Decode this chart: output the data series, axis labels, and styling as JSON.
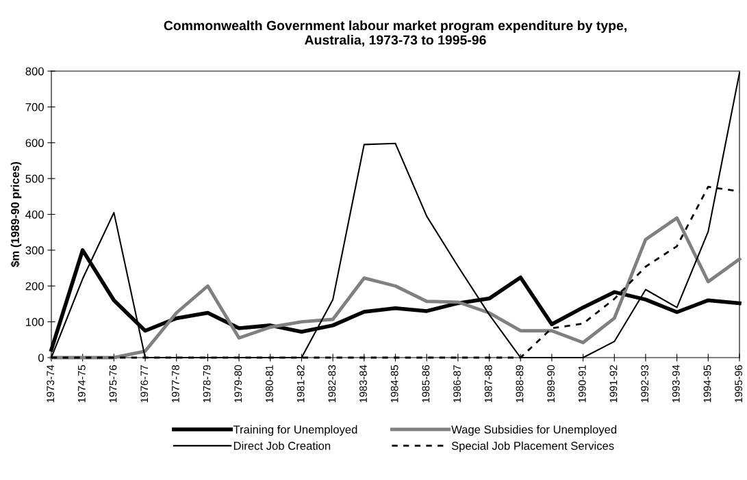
{
  "chart_data": {
    "type": "line",
    "title": "Commonwealth Government labour market program expenditure by type,\nAustralia, 1973-73 to 1995-96",
    "ylabel": "$m (1989-90 prices)",
    "categories": [
      "1973-74",
      "1974-75",
      "1975-76",
      "1976-77",
      "1977-78",
      "1978-79",
      "1979-80",
      "1980-81",
      "1981-82",
      "1982-83",
      "1983-84",
      "1984-85",
      "1985-86",
      "1986-87",
      "1987-88",
      "1988-89",
      "1989-90",
      "1990-91",
      "1991-92",
      "1992-93",
      "1993-94",
      "1994-95",
      "1995-96"
    ],
    "ylim": [
      0,
      800
    ],
    "yticks": [
      0,
      100,
      200,
      300,
      400,
      500,
      600,
      700,
      800
    ],
    "grid": false,
    "legend": "bottom",
    "marker": "none",
    "series": [
      {
        "name": "Training for Unemployed",
        "color": "#000000",
        "line_style": "solid",
        "values": [
          22,
          300,
          160,
          75,
          110,
          125,
          82,
          90,
          72,
          90,
          128,
          138,
          130,
          152,
          165,
          224,
          93,
          140,
          183,
          162,
          127,
          160,
          152
        ]
      },
      {
        "name": "Wage Subsidies for Unemployed",
        "color": "#808080",
        "line_style": "solid",
        "values": [
          0,
          0,
          0,
          18,
          125,
          200,
          55,
          85,
          100,
          107,
          222,
          200,
          157,
          155,
          125,
          75,
          75,
          42,
          110,
          330,
          390,
          212,
          275
        ]
      },
      {
        "name": "Direct Job Creation",
        "color": "#000000",
        "line_style": "solid",
        "values": [
          0,
          220,
          405,
          0,
          0,
          0,
          0,
          0,
          0,
          162,
          595,
          598,
          395,
          255,
          120,
          0,
          0,
          0,
          45,
          190,
          140,
          352,
          795
        ]
      },
      {
        "name": "Special Job Placement Services",
        "color": "#000000",
        "line_style": "dashed",
        "values": [
          0,
          0,
          0,
          0,
          0,
          0,
          0,
          0,
          0,
          0,
          0,
          0,
          0,
          0,
          0,
          0,
          82,
          95,
          164,
          254,
          311,
          477,
          464
        ]
      }
    ]
  }
}
